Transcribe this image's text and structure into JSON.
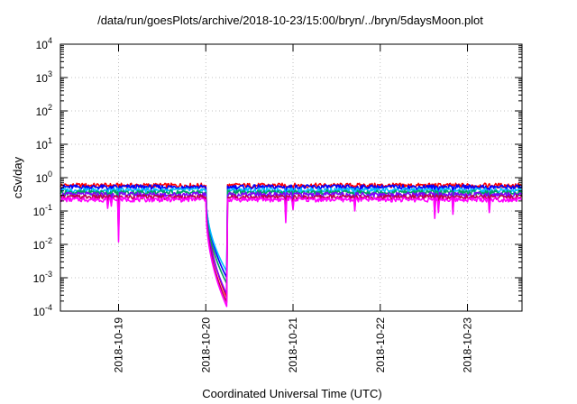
{
  "chart_data": {
    "type": "line",
    "title": "/data/run/goesPlots/archive/2018-10-23/15:00/bryn/../bryn/5daysMoon.plot",
    "xlabel": "Coordinated Universal Time (UTC)",
    "ylabel": "cSv/day",
    "yscale": "log",
    "ylim": [
      0.0001,
      10000
    ],
    "xlim": [
      "2018-10-18T08:00",
      "2018-10-23T15:00"
    ],
    "x_ticks": [
      "2018-10-19",
      "2018-10-20",
      "2018-10-21",
      "2018-10-22",
      "2018-10-23"
    ],
    "y_ticks": [
      {
        "base": "10",
        "exp": "4"
      },
      {
        "base": "10",
        "exp": "3"
      },
      {
        "base": "10",
        "exp": "2"
      },
      {
        "base": "10",
        "exp": "1"
      },
      {
        "base": "10",
        "exp": "0"
      },
      {
        "base": "10",
        "exp": "-1"
      },
      {
        "base": "10",
        "exp": "-2"
      },
      {
        "base": "10",
        "exp": "-3"
      },
      {
        "base": "10",
        "exp": "-4"
      }
    ],
    "grid": true,
    "legend": "none",
    "gap": {
      "start": "2018-10-20T00:00",
      "end": "2018-10-20T06:00",
      "note": "values fall sharply to ~1e-3 and below, then recover at end of gap"
    },
    "series": [
      {
        "color": "#ff0000",
        "level": 0.58,
        "gap_min": 0.00022
      },
      {
        "color": "#0000ff",
        "level": 0.52,
        "gap_min": 0.0009
      },
      {
        "color": "#00bfff",
        "level": 0.42,
        "gap_min": 0.0014
      },
      {
        "color": "#00a060",
        "level": 0.36,
        "gap_min": 0.0006
      },
      {
        "color": "#8000ff",
        "level": 0.31,
        "gap_min": 0.00028
      },
      {
        "color": "#c0004f",
        "level": 0.26,
        "gap_min": 0.00016
      },
      {
        "color": "#ff00ff",
        "level": 0.22,
        "gap_min": 0.00012
      }
    ],
    "dips": [
      {
        "x": "2018-10-18T21:00",
        "value": 0.12
      },
      {
        "x": "2018-10-18T22:00",
        "value": 0.14
      },
      {
        "x": "2018-10-19T00:00",
        "value": 0.012
      },
      {
        "x": "2018-10-20T22:00",
        "value": 0.045
      },
      {
        "x": "2018-10-21T00:00",
        "value": 0.11
      },
      {
        "x": "2018-10-21T17:00",
        "value": 0.1
      },
      {
        "x": "2018-10-22T15:00",
        "value": 0.06
      },
      {
        "x": "2018-10-22T16:00",
        "value": 0.09
      },
      {
        "x": "2018-10-22T20:00",
        "value": 0.08
      },
      {
        "x": "2018-10-23T06:00",
        "value": 0.09
      }
    ]
  }
}
